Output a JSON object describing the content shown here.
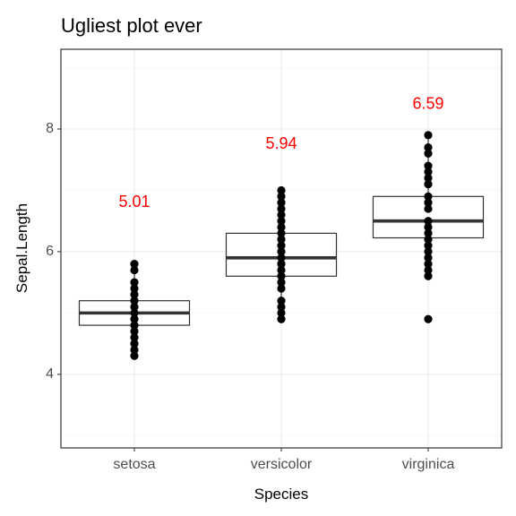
{
  "chart_data": {
    "type": "box",
    "title": "Ugliest plot ever",
    "xlabel": "Species",
    "ylabel": "Sepal.Length",
    "categories": [
      "setosa",
      "versicolor",
      "virginica"
    ],
    "ylim": [
      2.8,
      9.3
    ],
    "y_ticks": [
      4,
      6,
      8
    ],
    "grid": true,
    "legend": "none",
    "boxes": [
      {
        "category": "setosa",
        "q1": 4.8,
        "median": 5.0,
        "q3": 5.2,
        "whisker_low": 4.3,
        "whisker_high": 5.8
      },
      {
        "category": "versicolor",
        "q1": 5.6,
        "median": 5.9,
        "q3": 6.3,
        "whisker_low": 4.9,
        "whisker_high": 7.0
      },
      {
        "category": "virginica",
        "q1": 6.225,
        "median": 6.5,
        "q3": 6.9,
        "whisker_low": 5.6,
        "whisker_high": 7.9
      }
    ],
    "points": [
      {
        "category": "setosa",
        "values": [
          4.3,
          4.4,
          4.5,
          4.6,
          4.7,
          4.8,
          4.9,
          5.0,
          5.1,
          5.2,
          5.3,
          5.4,
          5.5,
          5.7,
          5.8
        ]
      },
      {
        "category": "versicolor",
        "values": [
          4.9,
          5.0,
          5.1,
          5.2,
          5.4,
          5.5,
          5.6,
          5.7,
          5.8,
          5.9,
          6.0,
          6.1,
          6.2,
          6.3,
          6.4,
          6.5,
          6.6,
          6.7,
          6.8,
          6.9,
          7.0
        ]
      },
      {
        "category": "virginica",
        "values": [
          4.9,
          5.6,
          5.7,
          5.8,
          5.9,
          6.0,
          6.1,
          6.2,
          6.3,
          6.4,
          6.5,
          6.7,
          6.8,
          6.9,
          7.1,
          7.2,
          7.3,
          7.4,
          7.6,
          7.7,
          7.9
        ]
      }
    ],
    "annotations": [
      {
        "category": "setosa",
        "text": "5.01",
        "y": 6.8
      },
      {
        "category": "versicolor",
        "text": "5.94",
        "y": 7.75
      },
      {
        "category": "virginica",
        "text": "6.59",
        "y": 8.4
      }
    ],
    "annotation_color": "#ff0000",
    "point_color": "#000000",
    "box_fill": "#ffffff",
    "box_stroke": "#333333"
  }
}
